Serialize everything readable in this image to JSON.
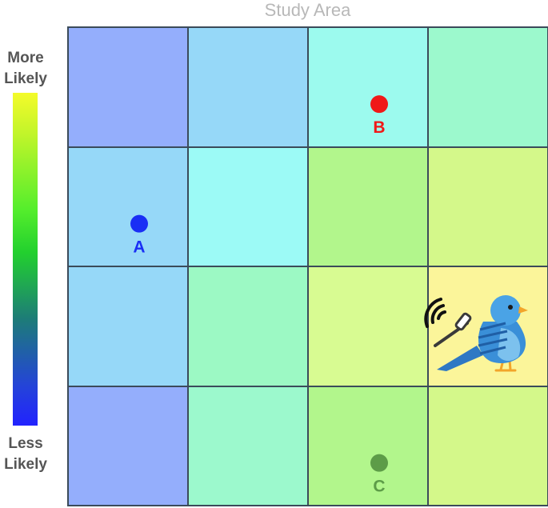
{
  "title": "Study Area",
  "legend": {
    "top_label_line1": "More",
    "top_label_line2": "Likely",
    "bottom_label_line1": "Less",
    "bottom_label_line2": "Likely",
    "gradient_colors": [
      "#f4fb2a",
      "#55ee2c",
      "#1d7c78",
      "#2222ff"
    ]
  },
  "grid": {
    "rows": 4,
    "cols": 4,
    "cell_colors": [
      [
        "#94aefc",
        "#96d8f8",
        "#9cfaee",
        "#9cf9cd"
      ],
      [
        "#96d8f8",
        "#9cfaf6",
        "#b2f68c",
        "#d4f88a"
      ],
      [
        "#96d8f8",
        "#9cf9c4",
        "#d8fb92",
        "#fbf59a"
      ],
      [
        "#94aefc",
        "#9cf9cd",
        "#b2f68c",
        "#d4f88a"
      ]
    ]
  },
  "points": [
    {
      "label": "A",
      "row": 1,
      "col": 0,
      "color": "#1a2ef5"
    },
    {
      "label": "B",
      "row": 0,
      "col": 2,
      "color": "#f01818"
    },
    {
      "label": "C",
      "row": 3,
      "col": 2,
      "color": "#5d9c48"
    }
  ],
  "bird": {
    "icon": "tagged-bird-icon",
    "row": 2,
    "col": 3,
    "body_color": "#3a8fd8",
    "signal_color": "#111111"
  }
}
